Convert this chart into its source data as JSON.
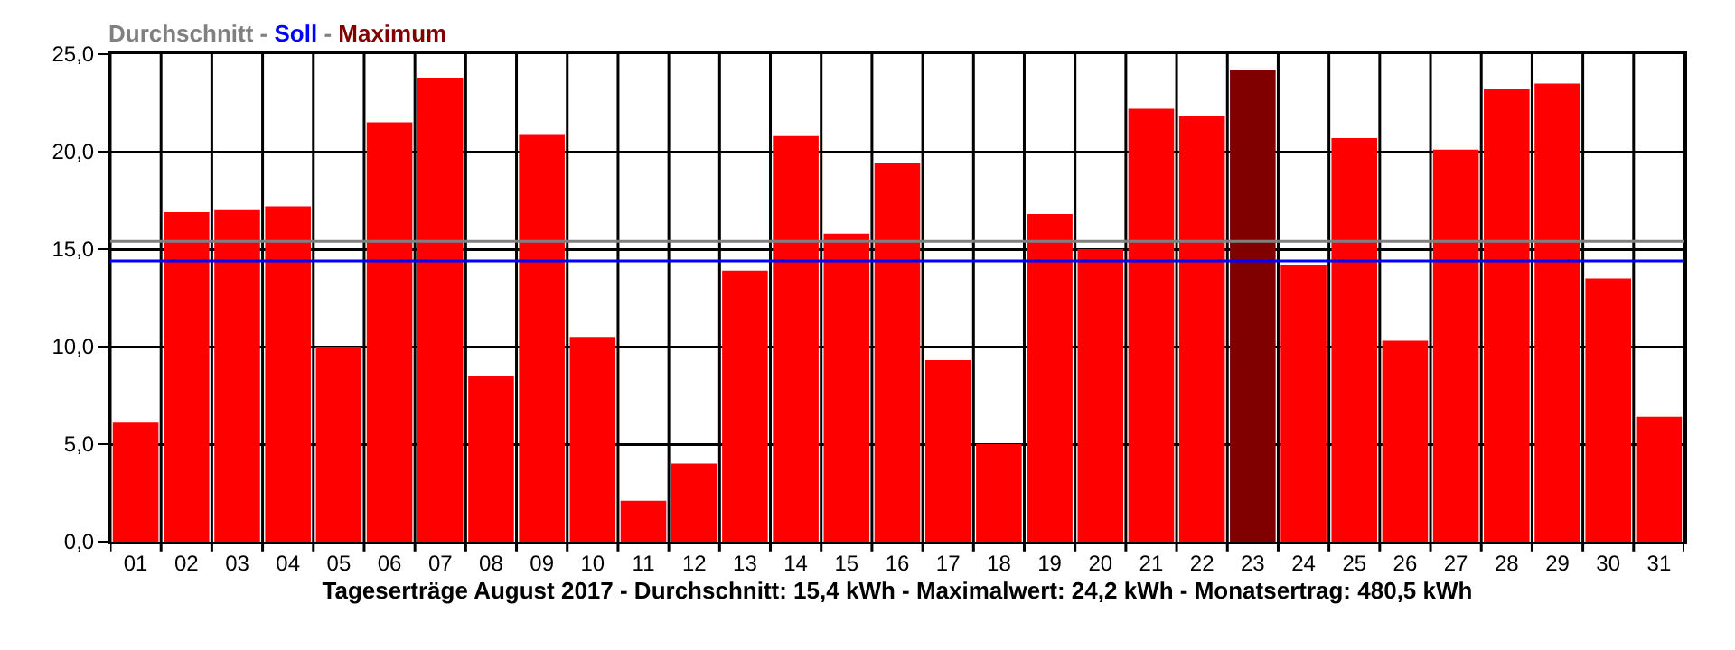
{
  "chart_data": {
    "type": "bar",
    "categories": [
      "01",
      "02",
      "03",
      "04",
      "05",
      "06",
      "07",
      "08",
      "09",
      "10",
      "11",
      "12",
      "13",
      "14",
      "15",
      "16",
      "17",
      "18",
      "19",
      "20",
      "21",
      "22",
      "23",
      "24",
      "25",
      "26",
      "27",
      "28",
      "29",
      "30",
      "31"
    ],
    "values": [
      6.1,
      16.9,
      17.0,
      17.2,
      10.0,
      21.5,
      23.8,
      8.5,
      20.9,
      10.5,
      2.1,
      4.0,
      13.9,
      20.8,
      15.8,
      19.4,
      9.3,
      5.0,
      16.8,
      15.0,
      22.2,
      21.8,
      24.2,
      14.2,
      20.7,
      10.3,
      20.1,
      23.2,
      23.5,
      13.5,
      6.4
    ],
    "colors": [
      "#ff0000",
      "#ff0000",
      "#ff0000",
      "#ff0000",
      "#ff0000",
      "#ff0000",
      "#ff0000",
      "#ff0000",
      "#ff0000",
      "#ff0000",
      "#ff0000",
      "#ff0000",
      "#ff0000",
      "#ff0000",
      "#ff0000",
      "#ff0000",
      "#ff0000",
      "#ff0000",
      "#ff0000",
      "#ff0000",
      "#ff0000",
      "#ff0000",
      "#800000",
      "#ff0000",
      "#ff0000",
      "#ff0000",
      "#ff0000",
      "#ff0000",
      "#ff0000",
      "#ff0000",
      "#ff0000"
    ],
    "ylim": [
      0,
      25
    ],
    "yticks": [
      {
        "value": 0,
        "label": "0,0"
      },
      {
        "value": 5,
        "label": "5,0"
      },
      {
        "value": 10,
        "label": "10,0"
      },
      {
        "value": 15,
        "label": "15,0"
      },
      {
        "value": 20,
        "label": "20,0"
      },
      {
        "value": 25,
        "label": "25,0"
      }
    ],
    "xlabel": "Tageserträge August 2017 - Durchschnitt: 15,4 kWh - Maximalwert: 24,2 kWh - Monatsertrag: 480,5 kWh",
    "ref_lines": [
      {
        "axis": "y",
        "value": 15.4,
        "color": "#808080"
      },
      {
        "axis": "y",
        "value": 14.4,
        "color": "#0000ff"
      }
    ],
    "title": "Durchschnitt - Soll - Maximum",
    "grid": true
  }
}
